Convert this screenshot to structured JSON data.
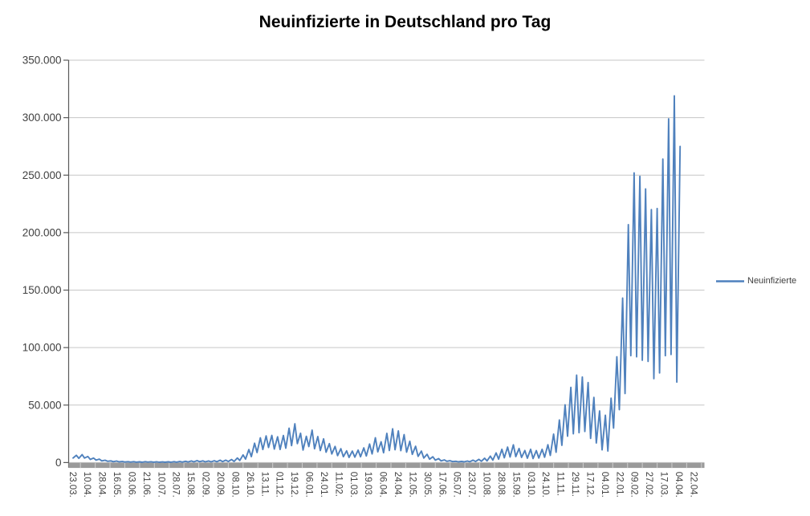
{
  "chart_data": {
    "type": "line",
    "title": "Neuinfizierte in Deutschland pro Tag",
    "legend": {
      "label": "Neuinfizierte",
      "position": "right"
    },
    "grid": true,
    "colors": {
      "series": "#4F81BD",
      "gridline": "#C6C6C6",
      "axis_line": "#595959",
      "axis_band": "#9A9A9A",
      "band_notch": "#C9C9C9",
      "tick_text": "#404040",
      "title_text": "#000000"
    },
    "y_axis": {
      "min": 0,
      "max": 350000,
      "tick_step": 50000,
      "tick_labels": [
        "0",
        "50.000",
        "100.000",
        "150.000",
        "200.000",
        "250.000",
        "300.000",
        "350.000"
      ]
    },
    "x_axis": {
      "unit": "date (daily data)",
      "first_label": "23.03.",
      "tick_interval_days": 18,
      "tick_labels": [
        "23.03.",
        "10.04.",
        "28.04.",
        "16.05.",
        "03.06.",
        "21.06.",
        "10.07.",
        "28.07.",
        "15.08.",
        "02.09.",
        "20.09.",
        "08.10.",
        "26.10.",
        "13.11.",
        "01.12.",
        "19.12.",
        "06.01.",
        "24.01.",
        "11.02.",
        "01.03.",
        "19.03.",
        "06.04.",
        "24.04.",
        "12.05.",
        "30.05.",
        "17.06.",
        "05.07.",
        "23.07.",
        "10.08.",
        "28.08.",
        "15.09.",
        "03.10.",
        "24.10.",
        "11.11.",
        "29.11.",
        "17.12.",
        "04.01.",
        "22.01.",
        "09.02.",
        "27.02.",
        "17.03.",
        "04.04.",
        "22.04."
      ]
    },
    "series": [
      {
        "name": "Neuinfizierte",
        "color": "#4F81BD",
        "x_format": "[day_index_since_first_label, value]",
        "points": [
          [
            0,
            4000
          ],
          [
            4,
            6300
          ],
          [
            7,
            3700
          ],
          [
            11,
            6900
          ],
          [
            14,
            3900
          ],
          [
            18,
            5300
          ],
          [
            21,
            2700
          ],
          [
            25,
            3900
          ],
          [
            28,
            2100
          ],
          [
            32,
            3000
          ],
          [
            35,
            1500
          ],
          [
            39,
            2000
          ],
          [
            42,
            1100
          ],
          [
            46,
            1500
          ],
          [
            49,
            800
          ],
          [
            53,
            1300
          ],
          [
            56,
            650
          ],
          [
            60,
            900
          ],
          [
            63,
            500
          ],
          [
            67,
            800
          ],
          [
            70,
            450
          ],
          [
            74,
            750
          ],
          [
            77,
            350
          ],
          [
            81,
            650
          ],
          [
            84,
            300
          ],
          [
            88,
            800
          ],
          [
            91,
            400
          ],
          [
            95,
            700
          ],
          [
            98,
            350
          ],
          [
            102,
            600
          ],
          [
            105,
            280
          ],
          [
            109,
            550
          ],
          [
            112,
            250
          ],
          [
            116,
            600
          ],
          [
            119,
            280
          ],
          [
            123,
            800
          ],
          [
            126,
            380
          ],
          [
            130,
            900
          ],
          [
            133,
            450
          ],
          [
            137,
            1100
          ],
          [
            140,
            500
          ],
          [
            144,
            1400
          ],
          [
            147,
            650
          ],
          [
            151,
            1700
          ],
          [
            154,
            750
          ],
          [
            158,
            1500
          ],
          [
            161,
            650
          ],
          [
            165,
            1400
          ],
          [
            168,
            600
          ],
          [
            172,
            1600
          ],
          [
            175,
            700
          ],
          [
            179,
            2000
          ],
          [
            182,
            850
          ],
          [
            186,
            2100
          ],
          [
            189,
            900
          ],
          [
            193,
            2650
          ],
          [
            196,
            950
          ],
          [
            200,
            4000
          ],
          [
            203,
            1800
          ],
          [
            207,
            6600
          ],
          [
            210,
            3000
          ],
          [
            214,
            11300
          ],
          [
            217,
            5200
          ],
          [
            221,
            16800
          ],
          [
            224,
            8700
          ],
          [
            228,
            21500
          ],
          [
            231,
            11400
          ],
          [
            235,
            23200
          ],
          [
            238,
            13100
          ],
          [
            242,
            23600
          ],
          [
            245,
            11700
          ],
          [
            249,
            22400
          ],
          [
            252,
            11400
          ],
          [
            256,
            23500
          ],
          [
            259,
            12500
          ],
          [
            263,
            29900
          ],
          [
            266,
            14700
          ],
          [
            270,
            33700
          ],
          [
            273,
            16500
          ],
          [
            277,
            25500
          ],
          [
            280,
            10900
          ],
          [
            284,
            22800
          ],
          [
            287,
            13900
          ],
          [
            291,
            28200
          ],
          [
            294,
            12000
          ],
          [
            298,
            22600
          ],
          [
            301,
            10500
          ],
          [
            305,
            20600
          ],
          [
            308,
            9000
          ],
          [
            312,
            16500
          ],
          [
            315,
            7500
          ],
          [
            319,
            14000
          ],
          [
            322,
            6000
          ],
          [
            326,
            12100
          ],
          [
            329,
            5100
          ],
          [
            333,
            10200
          ],
          [
            336,
            4500
          ],
          [
            340,
            10000
          ],
          [
            343,
            4700
          ],
          [
            347,
            10800
          ],
          [
            350,
            5000
          ],
          [
            354,
            12800
          ],
          [
            357,
            5700
          ],
          [
            361,
            16100
          ],
          [
            364,
            7500
          ],
          [
            368,
            21600
          ],
          [
            371,
            9300
          ],
          [
            375,
            18100
          ],
          [
            378,
            8500
          ],
          [
            382,
            25400
          ],
          [
            385,
            10500
          ],
          [
            389,
            29400
          ],
          [
            392,
            11200
          ],
          [
            396,
            27600
          ],
          [
            399,
            10300
          ],
          [
            403,
            24300
          ],
          [
            406,
            9100
          ],
          [
            410,
            18500
          ],
          [
            413,
            7100
          ],
          [
            417,
            14200
          ],
          [
            420,
            5400
          ],
          [
            424,
            10000
          ],
          [
            427,
            3900
          ],
          [
            431,
            7200
          ],
          [
            434,
            2900
          ],
          [
            438,
            5000
          ],
          [
            441,
            2100
          ],
          [
            445,
            3400
          ],
          [
            448,
            1500
          ],
          [
            452,
            2300
          ],
          [
            455,
            1100
          ],
          [
            459,
            1600
          ],
          [
            462,
            850
          ],
          [
            466,
            1100
          ],
          [
            469,
            650
          ],
          [
            473,
            1000
          ],
          [
            476,
            600
          ],
          [
            480,
            1300
          ],
          [
            483,
            700
          ],
          [
            487,
            2100
          ],
          [
            490,
            900
          ],
          [
            494,
            2800
          ],
          [
            497,
            1100
          ],
          [
            501,
            3800
          ],
          [
            504,
            1500
          ],
          [
            508,
            5600
          ],
          [
            511,
            2100
          ],
          [
            515,
            8400
          ],
          [
            518,
            2900
          ],
          [
            522,
            11500
          ],
          [
            525,
            4100
          ],
          [
            529,
            13500
          ],
          [
            532,
            4800
          ],
          [
            536,
            15400
          ],
          [
            539,
            5200
          ],
          [
            543,
            12200
          ],
          [
            546,
            4500
          ],
          [
            550,
            10500
          ],
          [
            553,
            3800
          ],
          [
            557,
            11500
          ],
          [
            560,
            3500
          ],
          [
            564,
            10400
          ],
          [
            567,
            3900
          ],
          [
            571,
            11500
          ],
          [
            574,
            4600
          ],
          [
            578,
            15500
          ],
          [
            581,
            6200
          ],
          [
            585,
            24700
          ],
          [
            588,
            9000
          ],
          [
            592,
            37100
          ],
          [
            595,
            15000
          ],
          [
            599,
            50200
          ],
          [
            602,
            23000
          ],
          [
            606,
            65400
          ],
          [
            609,
            25000
          ],
          [
            613,
            76000
          ],
          [
            616,
            26000
          ],
          [
            620,
            74400
          ],
          [
            623,
            27000
          ],
          [
            627,
            69600
          ],
          [
            630,
            21000
          ],
          [
            634,
            56700
          ],
          [
            637,
            17000
          ],
          [
            641,
            44900
          ],
          [
            644,
            11000
          ],
          [
            648,
            41200
          ],
          [
            651,
            10000
          ],
          [
            655,
            56000
          ],
          [
            658,
            30000
          ],
          [
            662,
            92000
          ],
          [
            665,
            46000
          ],
          [
            669,
            143000
          ],
          [
            672,
            60000
          ],
          [
            676,
            207000
          ],
          [
            679,
            93000
          ],
          [
            683,
            252000
          ],
          [
            686,
            92000
          ],
          [
            690,
            249000
          ],
          [
            693,
            89000
          ],
          [
            697,
            238000
          ],
          [
            700,
            88000
          ],
          [
            704,
            220000
          ],
          [
            707,
            73000
          ],
          [
            711,
            221000
          ],
          [
            714,
            78000
          ],
          [
            718,
            264000
          ],
          [
            721,
            93000
          ],
          [
            725,
            299000
          ],
          [
            728,
            94000
          ],
          [
            732,
            319000
          ],
          [
            735,
            70000
          ],
          [
            739,
            275000
          ]
        ]
      }
    ]
  }
}
